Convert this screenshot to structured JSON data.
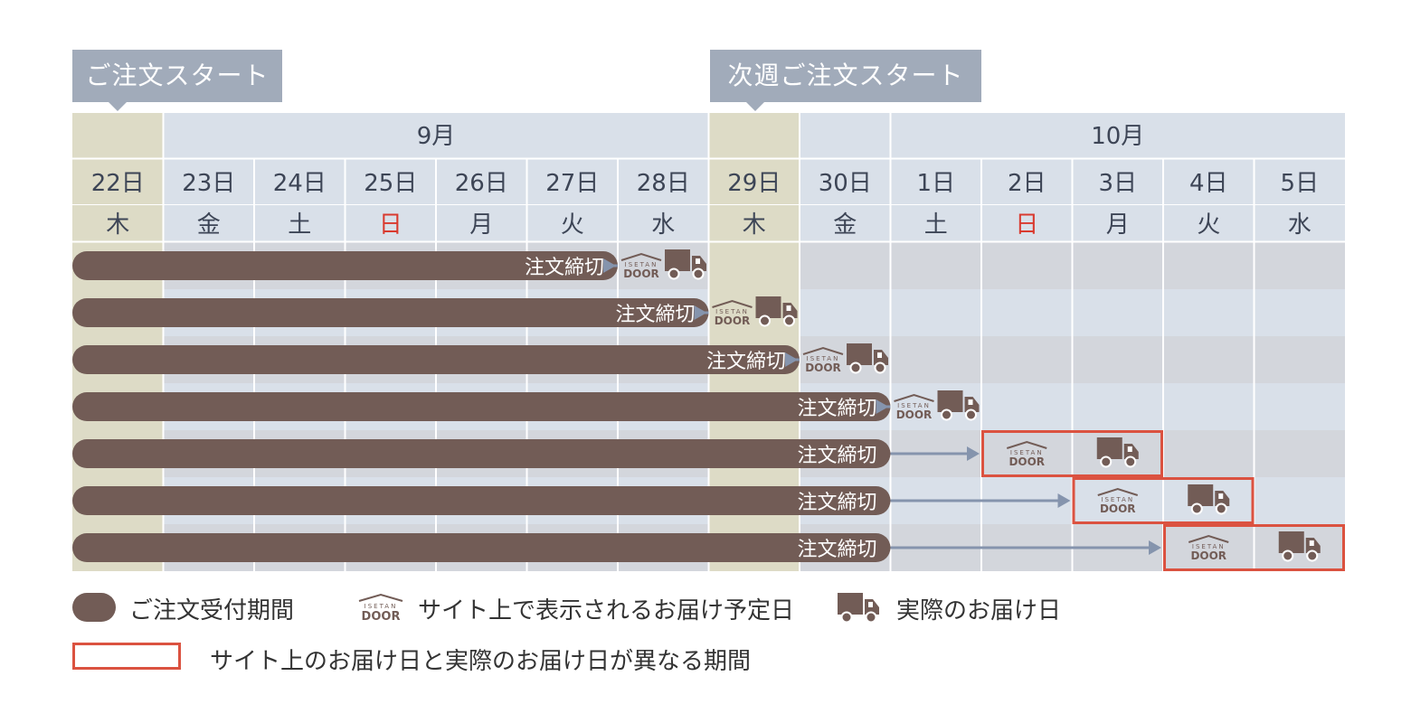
{
  "callouts": {
    "order_start": "ご注文スタート",
    "next_week_start": "次週ご注文スタート"
  },
  "months": [
    {
      "label": "9月",
      "from_day": 1,
      "to_day": 6
    },
    {
      "label": "10月",
      "from_day": 9,
      "to_day": 13
    }
  ],
  "days": [
    {
      "date": "22日",
      "weekday": "木",
      "highlight": true
    },
    {
      "date": "23日",
      "weekday": "金",
      "highlight": false
    },
    {
      "date": "24日",
      "weekday": "土",
      "highlight": false
    },
    {
      "date": "25日",
      "weekday": "日",
      "highlight": false,
      "sunday": true
    },
    {
      "date": "26日",
      "weekday": "月",
      "highlight": false
    },
    {
      "date": "27日",
      "weekday": "火",
      "highlight": false
    },
    {
      "date": "28日",
      "weekday": "水",
      "highlight": false
    },
    {
      "date": "29日",
      "weekday": "木",
      "highlight": true
    },
    {
      "date": "30日",
      "weekday": "金",
      "highlight": false
    },
    {
      "date": "1日",
      "weekday": "土",
      "highlight": false
    },
    {
      "date": "2日",
      "weekday": "日",
      "highlight": false,
      "sunday": true
    },
    {
      "date": "3日",
      "weekday": "月",
      "highlight": false
    },
    {
      "date": "4日",
      "weekday": "火",
      "highlight": false
    },
    {
      "date": "5日",
      "weekday": "水",
      "highlight": false
    }
  ],
  "rows": [
    {
      "deadline_label": "注文締切",
      "deadline_day": 5,
      "display_day": 6,
      "actual_day": 6,
      "differs": false
    },
    {
      "deadline_label": "注文締切",
      "deadline_day": 6,
      "display_day": 7,
      "actual_day": 7,
      "differs": false
    },
    {
      "deadline_label": "注文締切",
      "deadline_day": 7,
      "display_day": 8,
      "actual_day": 8,
      "differs": false
    },
    {
      "deadline_label": "注文締切",
      "deadline_day": 8,
      "display_day": 9,
      "actual_day": 9,
      "differs": false
    },
    {
      "deadline_label": "注文締切",
      "deadline_day": 8,
      "display_day": 10,
      "actual_day": 11,
      "differs": true
    },
    {
      "deadline_label": "注文締切",
      "deadline_day": 8,
      "display_day": 11,
      "actual_day": 12,
      "differs": true
    },
    {
      "deadline_label": "注文締切",
      "deadline_day": 8,
      "display_day": 12,
      "actual_day": 13,
      "differs": true
    }
  ],
  "logo": {
    "line1": "ISETAN",
    "line2": "DOOR"
  },
  "icons": {
    "truck": "truck-icon",
    "logo": "isetan-door-logo-icon"
  },
  "legend": {
    "order_period": "ご注文受付期間",
    "site_display_date": "サイト上で表示されるお届け予定日",
    "actual_date": "実際のお届け日",
    "diff_period": "サイト上のお届け日と実際のお届け日が異なる期間"
  },
  "colors": {
    "header_bg": "#d9e0e9",
    "highlight_bg": "#dddbc6",
    "row_light": "#d9e0e9",
    "row_dark": "#d3d6dc",
    "bar": "#725c56",
    "arrow": "#8594ad",
    "callout": "#a1abba",
    "sunday": "#d93a2f",
    "diff_border": "#db5240",
    "text": "#3d4556"
  }
}
